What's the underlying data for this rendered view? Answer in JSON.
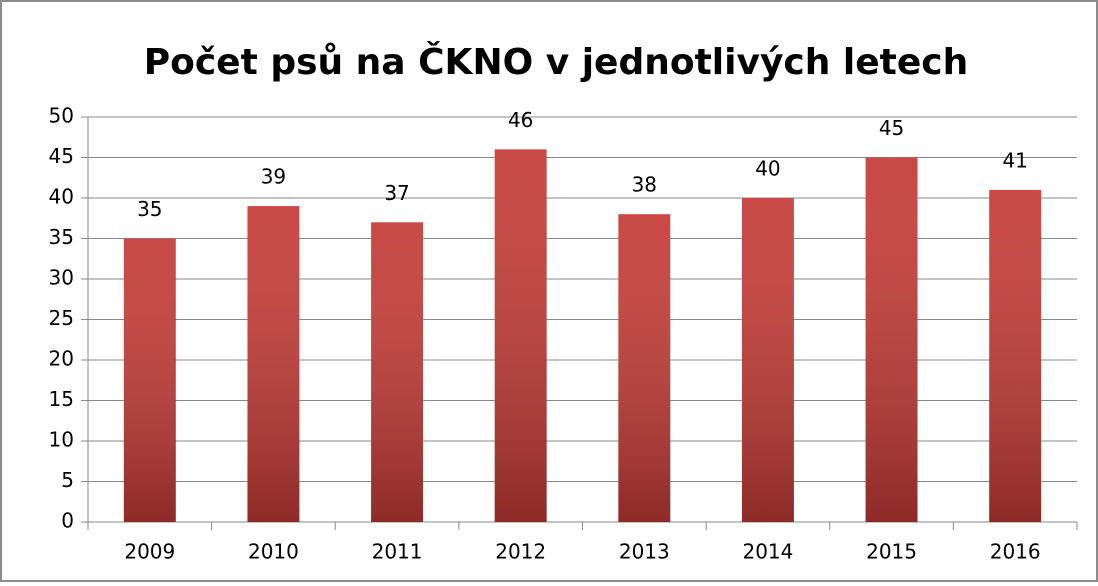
{
  "chart_data": {
    "type": "bar",
    "title": "Počet psů na ČKNO v jednotlivých letech",
    "categories": [
      "2009",
      "2010",
      "2011",
      "2012",
      "2013",
      "2014",
      "2015",
      "2016"
    ],
    "values": [
      35,
      39,
      37,
      46,
      38,
      40,
      45,
      41
    ],
    "color": "#c43a36",
    "ylim": [
      0,
      50
    ],
    "yticks": [
      0,
      5,
      10,
      15,
      20,
      25,
      30,
      35,
      40,
      45,
      50
    ],
    "grid": true
  }
}
